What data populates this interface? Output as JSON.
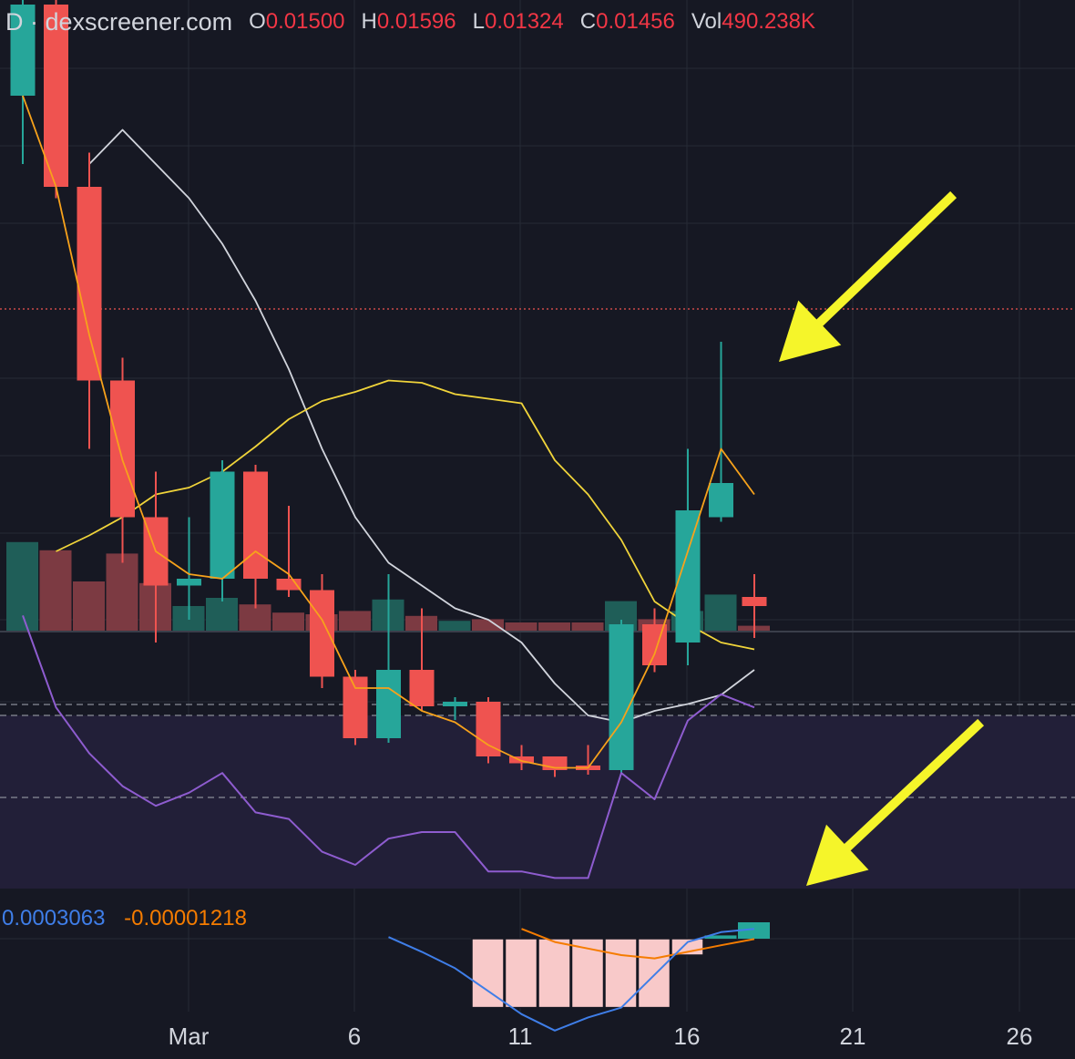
{
  "header": {
    "symbol": "D · dexscreener.com",
    "o_label": "O",
    "o_value": "0.01500",
    "h_label": "H",
    "h_value": "0.01596",
    "l_label": "L",
    "l_value": "0.01324",
    "c_label": "C",
    "c_value": "0.01456",
    "vol_label": "Vol",
    "vol_value": "490.238K"
  },
  "macd": {
    "macd_value": "0.0003063",
    "signal_value": "-0.00001218"
  },
  "x_axis": {
    "labels": [
      "Mar",
      "6",
      "11",
      "16",
      "21",
      "26"
    ]
  },
  "colors": {
    "background": "#161823",
    "up": "#26a69a",
    "down": "#ef5350",
    "ma_fast": "#f7a21b",
    "ma_mid": "#d1d4dc",
    "ma_slow": "#f0d43a",
    "rsi": "#8e5ccf",
    "macd": "#3f7ee8",
    "signal": "#f57c00",
    "histogram_neg": "#f8c9c9",
    "histogram_pos": "#26a69a",
    "arrow": "#f5f52a"
  },
  "chart_data": {
    "type": "candlestick",
    "timeframe": "D",
    "x_axis_labels": [
      "Mar",
      "6",
      "11",
      "16",
      "21",
      "26"
    ],
    "last_candle": {
      "open": 0.015,
      "high": 0.01596,
      "low": 0.01324,
      "close": 0.01456,
      "volume": "490.238K"
    },
    "candles": [
      {
        "dir": "up",
        "open": 0.037,
        "close": 0.041,
        "high": 0.042,
        "low": 0.034
      },
      {
        "dir": "down",
        "open": 0.041,
        "close": 0.033,
        "high": 0.042,
        "low": 0.0325
      },
      {
        "dir": "down",
        "open": 0.033,
        "close": 0.0245,
        "high": 0.0345,
        "low": 0.0215
      },
      {
        "dir": "down",
        "open": 0.0245,
        "close": 0.0185,
        "high": 0.0255,
        "low": 0.0165
      },
      {
        "dir": "down",
        "open": 0.0185,
        "close": 0.0155,
        "high": 0.0205,
        "low": 0.013
      },
      {
        "dir": "up",
        "open": 0.0155,
        "close": 0.0158,
        "high": 0.0185,
        "low": 0.014
      },
      {
        "dir": "up",
        "open": 0.0158,
        "close": 0.0205,
        "high": 0.021,
        "low": 0.0148
      },
      {
        "dir": "down",
        "open": 0.0205,
        "close": 0.0158,
        "high": 0.0208,
        "low": 0.0145
      },
      {
        "dir": "down",
        "open": 0.0158,
        "close": 0.0153,
        "high": 0.019,
        "low": 0.015
      },
      {
        "dir": "down",
        "open": 0.0153,
        "close": 0.0115,
        "high": 0.016,
        "low": 0.011
      },
      {
        "dir": "down",
        "open": 0.0115,
        "close": 0.0088,
        "high": 0.0118,
        "low": 0.0085
      },
      {
        "dir": "up",
        "open": 0.0088,
        "close": 0.0118,
        "high": 0.016,
        "low": 0.0086
      },
      {
        "dir": "down",
        "open": 0.0118,
        "close": 0.0102,
        "high": 0.0145,
        "low": 0.01
      },
      {
        "dir": "up",
        "open": 0.0102,
        "close": 0.0104,
        "high": 0.0106,
        "low": 0.0096
      },
      {
        "dir": "down",
        "open": 0.0104,
        "close": 0.008,
        "high": 0.0106,
        "low": 0.0077
      },
      {
        "dir": "down",
        "open": 0.008,
        "close": 0.0077,
        "high": 0.0085,
        "low": 0.0074
      },
      {
        "dir": "down",
        "open": 0.008,
        "close": 0.0074,
        "high": 0.008,
        "low": 0.0071
      },
      {
        "dir": "down",
        "open": 0.0076,
        "close": 0.0074,
        "high": 0.0085,
        "low": 0.0072
      },
      {
        "dir": "up",
        "open": 0.0074,
        "close": 0.0138,
        "high": 0.014,
        "low": 0.0073
      },
      {
        "dir": "down",
        "open": 0.0138,
        "close": 0.012,
        "high": 0.0145,
        "low": 0.0117
      },
      {
        "dir": "up",
        "open": 0.013,
        "close": 0.0188,
        "high": 0.0215,
        "low": 0.012
      },
      {
        "dir": "up",
        "open": 0.0185,
        "close": 0.02,
        "high": 0.0262,
        "low": 0.0183
      },
      {
        "dir": "down",
        "open": 0.015,
        "close": 0.0146,
        "high": 0.016,
        "low": 0.0132
      }
    ],
    "ma_fast": [
      0.037,
      0.033,
      0.0265,
      0.021,
      0.017,
      0.016,
      0.0158,
      0.017,
      0.016,
      0.014,
      0.011,
      0.011,
      0.01,
      0.0095,
      0.0085,
      0.0078,
      0.0075,
      0.0075,
      0.0095,
      0.0125,
      0.017,
      0.0215,
      0.0195
    ],
    "ma_mid": [
      null,
      null,
      0.034,
      0.0355,
      0.034,
      0.0325,
      0.0305,
      0.028,
      0.025,
      0.0215,
      0.0185,
      0.0165,
      0.0155,
      0.0145,
      0.014,
      0.013,
      0.0112,
      0.0098,
      0.0095,
      0.01,
      0.0103,
      0.0107,
      0.0118
    ],
    "ma_slow": [
      null,
      0.017,
      0.0177,
      0.0185,
      0.0195,
      0.0198,
      0.0205,
      0.0216,
      0.0228,
      0.0236,
      0.024,
      0.0245,
      0.0244,
      0.0239,
      0.0237,
      0.0235,
      0.021,
      0.0195,
      0.0175,
      0.0148,
      0.0138,
      0.013,
      0.0127
    ],
    "volume": [
      0.54,
      0.49,
      0.3,
      0.47,
      0.29,
      0.15,
      0.2,
      0.16,
      0.11,
      0.1,
      0.12,
      0.19,
      0.09,
      0.06,
      0.07,
      0.05,
      0.05,
      0.05,
      0.18,
      0.07,
      0.12,
      0.22,
      0.03
    ],
    "rsi": [
      68,
      54,
      47,
      42,
      39,
      41,
      44,
      38,
      37,
      32,
      30,
      34,
      35,
      35,
      29,
      29,
      28,
      28,
      44,
      40,
      52,
      56,
      54
    ],
    "macd_line": [
      null,
      null,
      null,
      null,
      null,
      null,
      null,
      null,
      null,
      null,
      null,
      5e-05,
      -0.0004,
      -0.0009,
      -0.0016,
      -0.0023,
      -0.0028,
      -0.0024,
      -0.0021,
      -0.0011,
      -0.0001,
      0.0002,
      0.0003
    ],
    "signal_line": [
      null,
      null,
      null,
      null,
      null,
      null,
      null,
      null,
      null,
      null,
      null,
      null,
      null,
      null,
      null,
      0.0003,
      -0.0001,
      -0.0003,
      -0.0005,
      -0.0006,
      -0.0004,
      -0.0002,
      -1.218e-05
    ],
    "macd_histogram": [
      null,
      null,
      null,
      null,
      null,
      null,
      null,
      null,
      null,
      null,
      null,
      null,
      null,
      null,
      -0.0021,
      -0.0021,
      -0.0021,
      -0.0021,
      -0.0021,
      -0.0021,
      -0.0005,
      0.0001,
      0.0005
    ]
  }
}
